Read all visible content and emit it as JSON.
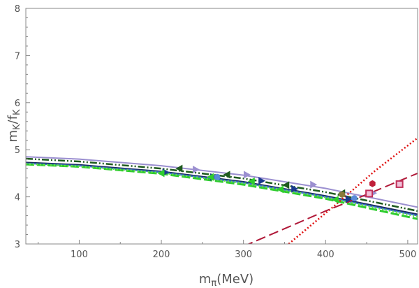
{
  "chart_data": {
    "type": "line",
    "xlabel": "m",
    "xlabel_sub": "π",
    "xlabel_unit": "(MeV)",
    "ylabel": "m",
    "ylabel_sub1": "K",
    "ylabel_mid": "/f",
    "ylabel_sub2": "K",
    "xlim": [
      35,
      512
    ],
    "ylim": [
      3,
      8
    ],
    "xticks": [
      100,
      200,
      300,
      400,
      500
    ],
    "yticks": [
      3,
      4,
      5,
      6,
      7,
      8
    ],
    "xtick_labels": [
      "100",
      "200",
      "300",
      "400",
      "500"
    ],
    "ytick_labels": [
      "3",
      "4",
      "5",
      "6",
      "7",
      "8"
    ],
    "series": [
      {
        "name": "lavender-solid",
        "color": "#9b8fd0",
        "dash": "",
        "width": 2,
        "x": [
          35,
          100,
          200,
          300,
          400,
          512
        ],
        "y": [
          4.85,
          4.8,
          4.66,
          4.46,
          4.18,
          3.78
        ]
      },
      {
        "name": "dark-green-dashdot",
        "color": "#1e5a1e",
        "dash": "10,3,2,3,2,3",
        "width": 2.5,
        "x": [
          35,
          100,
          200,
          300,
          400,
          512
        ],
        "y": [
          4.81,
          4.75,
          4.6,
          4.39,
          4.1,
          3.7
        ]
      },
      {
        "name": "navy-solid",
        "color": "#1a2a5e",
        "dash": "",
        "width": 2,
        "x": [
          35,
          100,
          200,
          300,
          400,
          512
        ],
        "y": [
          4.73,
          4.68,
          4.54,
          4.32,
          4.02,
          3.63
        ]
      },
      {
        "name": "blue-solid",
        "color": "#3a6ed0",
        "dash": "",
        "width": 2,
        "x": [
          35,
          100,
          200,
          300,
          400,
          512
        ],
        "y": [
          4.71,
          4.66,
          4.52,
          4.3,
          4.0,
          3.6
        ]
      },
      {
        "name": "green-dashed",
        "color": "#2ecc2e",
        "dash": "12,4",
        "width": 3,
        "x": [
          35,
          100,
          200,
          300,
          400,
          512
        ],
        "y": [
          4.69,
          4.64,
          4.49,
          4.26,
          3.96,
          3.53
        ]
      },
      {
        "name": "light-green-dotted",
        "color": "#66dd44",
        "dash": "2,3",
        "width": 2.5,
        "x": [
          35,
          100,
          200,
          300,
          400,
          512
        ],
        "y": [
          4.7,
          4.65,
          4.51,
          4.29,
          3.99,
          3.58
        ]
      },
      {
        "name": "red-dotted",
        "color": "#e01010",
        "dash": "2,3",
        "width": 2.5,
        "x": [
          355,
          410,
          460,
          512
        ],
        "y": [
          3.0,
          3.8,
          4.55,
          5.25
        ]
      },
      {
        "name": "crimson-dashed",
        "color": "#b01838",
        "dash": "14,6",
        "width": 2,
        "x": [
          300,
          400,
          450,
          512
        ],
        "y": [
          2.95,
          3.7,
          4.05,
          4.5
        ]
      }
    ],
    "points": [
      {
        "series": "lavender-triangles",
        "marker": "tri-right",
        "color": "#9b8fd0",
        "x": [
          242,
          304,
          385,
          458
        ],
        "y": [
          4.58,
          4.47,
          4.26,
          4.08
        ]
      },
      {
        "series": "dark-green-triangles",
        "marker": "tri-left",
        "color": "#1e5a1e",
        "x": [
          222,
          280,
          352,
          420
        ],
        "y": [
          4.6,
          4.47,
          4.25,
          4.08
        ]
      },
      {
        "series": "navy-triangles",
        "marker": "tri-right",
        "color": "#1a3a8e",
        "x": [
          205,
          263,
          322,
          362,
          428
        ],
        "y": [
          4.52,
          4.42,
          4.34,
          4.17,
          3.95
        ]
      },
      {
        "series": "blue-circles",
        "marker": "circle",
        "color": "#5a8ad8",
        "x": [
          268,
          435
        ],
        "y": [
          4.42,
          3.97
        ]
      },
      {
        "series": "green-triangles",
        "marker": "tri-left",
        "color": "#2ecc2e",
        "x": [
          200,
          260,
          310,
          345,
          412
        ],
        "y": [
          4.5,
          4.42,
          4.33,
          4.16,
          3.94
        ]
      },
      {
        "series": "red-hexagons",
        "marker": "hexagon",
        "color": "#c0203a",
        "x": [
          457
        ],
        "y": [
          4.28
        ]
      },
      {
        "series": "crimson-squares",
        "marker": "square",
        "color": "#c0305a",
        "x": [
          453,
          490
        ],
        "y": [
          4.07,
          4.27
        ]
      },
      {
        "series": "olive-circle",
        "marker": "circle",
        "color": "#8a7a3a",
        "x": [
          420
        ],
        "y": [
          4.05
        ]
      }
    ]
  }
}
